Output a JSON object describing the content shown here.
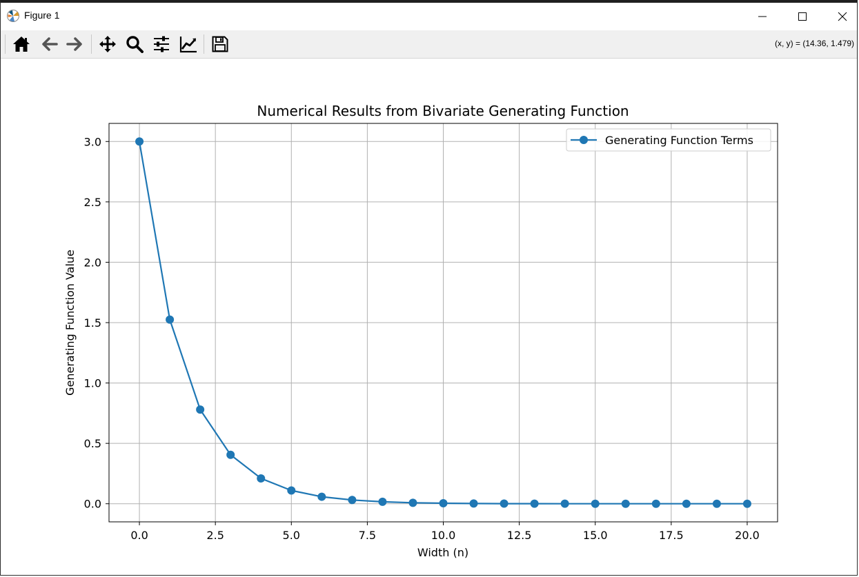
{
  "window": {
    "title": "Figure 1",
    "controls": [
      "minimize",
      "maximize",
      "close"
    ]
  },
  "toolbar": {
    "buttons": [
      {
        "name": "home",
        "icon": "home-icon"
      },
      {
        "name": "back",
        "icon": "arrow-left-icon"
      },
      {
        "name": "forward",
        "icon": "arrow-right-icon"
      },
      {
        "name": "pan",
        "icon": "move-icon"
      },
      {
        "name": "zoom",
        "icon": "zoom-icon"
      },
      {
        "name": "configure-subplots",
        "icon": "sliders-icon"
      },
      {
        "name": "edit-axis",
        "icon": "line-chart-icon"
      },
      {
        "name": "save",
        "icon": "save-icon"
      }
    ],
    "coordinates": "(x, y) = (14.36, 1.479)"
  },
  "colors": {
    "series": "#1f77b4",
    "grid": "#b0b0b0",
    "toolbar_bg": "#f0f0f0"
  },
  "chart_data": {
    "type": "line",
    "title": "Numerical Results from Bivariate Generating Function",
    "xlabel": "Width (n)",
    "ylabel": "Generating Function Value",
    "xlim": [
      -1,
      21
    ],
    "ylim": [
      -0.15,
      3.15
    ],
    "xticks": [
      0.0,
      2.5,
      5.0,
      7.5,
      10.0,
      12.5,
      15.0,
      17.5,
      20.0
    ],
    "xtick_labels": [
      "0.0",
      "2.5",
      "5.0",
      "7.5",
      "10.0",
      "12.5",
      "15.0",
      "17.5",
      "20.0"
    ],
    "yticks": [
      0.0,
      0.5,
      1.0,
      1.5,
      2.0,
      2.5,
      3.0
    ],
    "ytick_labels": [
      "0.0",
      "0.5",
      "1.0",
      "1.5",
      "2.0",
      "2.5",
      "3.0"
    ],
    "grid": true,
    "legend_position": "upper right",
    "series": [
      {
        "name": "Generating Function Terms",
        "marker": "circle",
        "x": [
          0,
          1,
          2,
          3,
          4,
          5,
          6,
          7,
          8,
          9,
          10,
          11,
          12,
          13,
          14,
          15,
          16,
          17,
          18,
          19,
          20
        ],
        "y": [
          3.0,
          1.525,
          0.78,
          0.405,
          0.21,
          0.11,
          0.058,
          0.031,
          0.016,
          0.008,
          0.004,
          0.002,
          0.001,
          0.0005,
          0.0003,
          0.0001,
          0.0001,
          0.0,
          0.0,
          0.0,
          0.0
        ]
      }
    ]
  }
}
